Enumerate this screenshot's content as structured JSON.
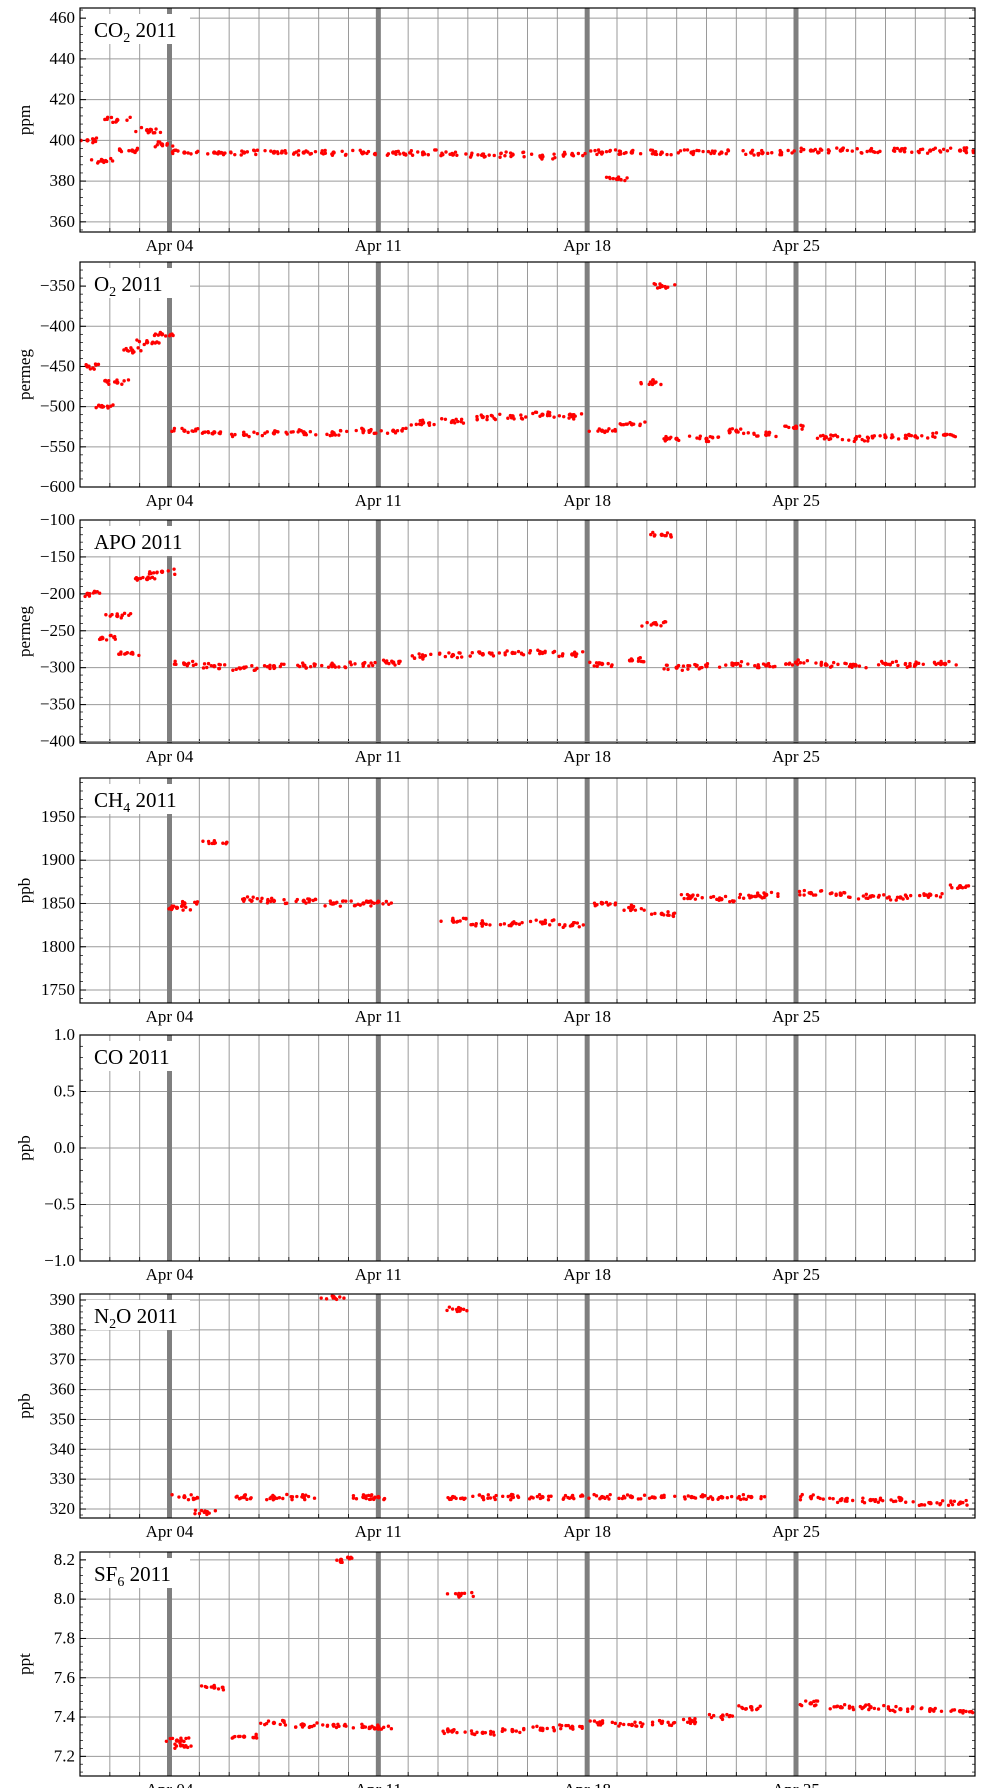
{
  "accent_colors": {
    "data_points": "#ff0000",
    "grid": "#9a9a9a",
    "week_lines": "#7f7f7f"
  },
  "x_axis": {
    "ticks": [
      {
        "date": "2011-04-04",
        "label": "Apr 04"
      },
      {
        "date": "2011-04-11",
        "label": "Apr 11"
      },
      {
        "date": "2011-04-18",
        "label": "Apr 18"
      },
      {
        "date": "2011-04-25",
        "label": "Apr 25"
      }
    ],
    "range": [
      "2011-04-01",
      "2011-05-01"
    ]
  },
  "chart_data": [
    {
      "type": "scatter",
      "title": "CO",
      "title_sub": "2",
      "title_year": "2011",
      "ylabel": "ppm",
      "ylim": [
        355,
        465
      ],
      "yticks": [
        360,
        380,
        400,
        420,
        440,
        460
      ],
      "ytick_labels": [
        "360",
        "380",
        "400",
        "420",
        "440",
        "460"
      ],
      "points": [
        {
          "x": "2011-04-01 06:00",
          "y": 400
        },
        {
          "x": "2011-04-01 18:00",
          "y": 390
        },
        {
          "x": "2011-04-02 06:00",
          "y": 410
        },
        {
          "x": "2011-04-02 18:00",
          "y": 395
        },
        {
          "x": "2011-04-03 06:00",
          "y": 405
        },
        {
          "x": "2011-04-03 18:00",
          "y": 398
        },
        {
          "x": "2011-04-04 12:00",
          "y": 394
        },
        {
          "x": "2011-04-05 12:00",
          "y": 394
        },
        {
          "x": "2011-04-06 12:00",
          "y": 394
        },
        {
          "x": "2011-04-07 12:00",
          "y": 394
        },
        {
          "x": "2011-04-08 12:00",
          "y": 394
        },
        {
          "x": "2011-04-09 12:00",
          "y": 394
        },
        {
          "x": "2011-04-10 12:00",
          "y": 394
        },
        {
          "x": "2011-04-11 12:00",
          "y": 394
        },
        {
          "x": "2011-04-12 12:00",
          "y": 394
        },
        {
          "x": "2011-04-13 12:00",
          "y": 393
        },
        {
          "x": "2011-04-14 12:00",
          "y": 393
        },
        {
          "x": "2011-04-15 12:00",
          "y": 393
        },
        {
          "x": "2011-04-16 12:00",
          "y": 392
        },
        {
          "x": "2011-04-17 12:00",
          "y": 393
        },
        {
          "x": "2011-04-18 12:00",
          "y": 394
        },
        {
          "x": "2011-04-19 00:00",
          "y": 381
        },
        {
          "x": "2011-04-19 12:00",
          "y": 394
        },
        {
          "x": "2011-04-20 12:00",
          "y": 394
        },
        {
          "x": "2011-04-21 12:00",
          "y": 394
        },
        {
          "x": "2011-04-22 12:00",
          "y": 394
        },
        {
          "x": "2011-04-23 12:00",
          "y": 394
        },
        {
          "x": "2011-04-24 12:00",
          "y": 394
        },
        {
          "x": "2011-04-25 12:00",
          "y": 395
        },
        {
          "x": "2011-04-26 12:00",
          "y": 395
        },
        {
          "x": "2011-04-27 12:00",
          "y": 395
        },
        {
          "x": "2011-04-28 12:00",
          "y": 395
        },
        {
          "x": "2011-04-29 12:00",
          "y": 395
        },
        {
          "x": "2011-04-30 12:00",
          "y": 395
        }
      ]
    },
    {
      "type": "scatter",
      "title": "O",
      "title_sub": "2",
      "title_year": "2011",
      "ylabel": "permeg",
      "ylim": [
        -600,
        -320
      ],
      "yticks": [
        -600,
        -550,
        -500,
        -450,
        -400,
        -350
      ],
      "ytick_labels": [
        "−600",
        "−550",
        "−500",
        "−450",
        "−400",
        "−350"
      ],
      "points": [
        {
          "x": "2011-04-01 06:00",
          "y": -450
        },
        {
          "x": "2011-04-01 18:00",
          "y": -500
        },
        {
          "x": "2011-04-02 06:00",
          "y": -470
        },
        {
          "x": "2011-04-02 18:00",
          "y": -430
        },
        {
          "x": "2011-04-03 06:00",
          "y": -420
        },
        {
          "x": "2011-04-03 18:00",
          "y": -410
        },
        {
          "x": "2011-04-04 12:00",
          "y": -530
        },
        {
          "x": "2011-04-05 12:00",
          "y": -532
        },
        {
          "x": "2011-04-06 12:00",
          "y": -535
        },
        {
          "x": "2011-04-07 12:00",
          "y": -533
        },
        {
          "x": "2011-04-08 12:00",
          "y": -532
        },
        {
          "x": "2011-04-09 12:00",
          "y": -533
        },
        {
          "x": "2011-04-10 12:00",
          "y": -530
        },
        {
          "x": "2011-04-11 12:00",
          "y": -530
        },
        {
          "x": "2011-04-12 12:00",
          "y": -520
        },
        {
          "x": "2011-04-13 12:00",
          "y": -518
        },
        {
          "x": "2011-04-14 12:00",
          "y": -513
        },
        {
          "x": "2011-04-15 12:00",
          "y": -512
        },
        {
          "x": "2011-04-16 12:00",
          "y": -510
        },
        {
          "x": "2011-04-17 12:00",
          "y": -512
        },
        {
          "x": "2011-04-18 12:00",
          "y": -530
        },
        {
          "x": "2011-04-19 12:00",
          "y": -522
        },
        {
          "x": "2011-04-20 06:00",
          "y": -470
        },
        {
          "x": "2011-04-20 12:00",
          "y": -350
        },
        {
          "x": "2011-04-21 00:00",
          "y": -540
        },
        {
          "x": "2011-04-22 00:00",
          "y": -540
        },
        {
          "x": "2011-04-23 00:00",
          "y": -530
        },
        {
          "x": "2011-04-24 00:00",
          "y": -535
        },
        {
          "x": "2011-04-25 00:00",
          "y": -525
        },
        {
          "x": "2011-04-26 00:00",
          "y": -538
        },
        {
          "x": "2011-04-27 00:00",
          "y": -540
        },
        {
          "x": "2011-04-28 00:00",
          "y": -538
        },
        {
          "x": "2011-04-29 00:00",
          "y": -537
        },
        {
          "x": "2011-04-30 00:00",
          "y": -535
        }
      ]
    },
    {
      "type": "scatter",
      "title": "APO",
      "title_sub": "",
      "title_year": "2011",
      "ylabel": "permeg",
      "ylim": [
        -402,
        -100
      ],
      "yticks": [
        -400,
        -350,
        -300,
        -250,
        -200,
        -150,
        -100
      ],
      "ytick_labels": [
        "−400",
        "−350",
        "−300",
        "−250",
        "−200",
        "−150",
        "−100"
      ],
      "points": [
        {
          "x": "2011-04-01 06:00",
          "y": -200
        },
        {
          "x": "2011-04-01 18:00",
          "y": -260
        },
        {
          "x": "2011-04-02 06:00",
          "y": -230
        },
        {
          "x": "2011-04-02 18:00",
          "y": -280
        },
        {
          "x": "2011-04-03 06:00",
          "y": -180
        },
        {
          "x": "2011-04-03 18:00",
          "y": -170
        },
        {
          "x": "2011-04-04 12:00",
          "y": -295
        },
        {
          "x": "2011-04-05 12:00",
          "y": -298
        },
        {
          "x": "2011-04-06 12:00",
          "y": -300
        },
        {
          "x": "2011-04-07 12:00",
          "y": -298
        },
        {
          "x": "2011-04-08 12:00",
          "y": -297
        },
        {
          "x": "2011-04-09 12:00",
          "y": -297
        },
        {
          "x": "2011-04-10 12:00",
          "y": -295
        },
        {
          "x": "2011-04-11 12:00",
          "y": -293
        },
        {
          "x": "2011-04-12 12:00",
          "y": -285
        },
        {
          "x": "2011-04-13 12:00",
          "y": -283
        },
        {
          "x": "2011-04-14 12:00",
          "y": -282
        },
        {
          "x": "2011-04-15 12:00",
          "y": -280
        },
        {
          "x": "2011-04-16 12:00",
          "y": -280
        },
        {
          "x": "2011-04-17 12:00",
          "y": -282
        },
        {
          "x": "2011-04-18 12:00",
          "y": -295
        },
        {
          "x": "2011-04-19 12:00",
          "y": -290
        },
        {
          "x": "2011-04-20 06:00",
          "y": -240
        },
        {
          "x": "2011-04-20 12:00",
          "y": -120
        },
        {
          "x": "2011-04-21 00:00",
          "y": -300
        },
        {
          "x": "2011-04-22 00:00",
          "y": -298
        },
        {
          "x": "2011-04-23 00:00",
          "y": -295
        },
        {
          "x": "2011-04-24 00:00",
          "y": -297
        },
        {
          "x": "2011-04-25 00:00",
          "y": -293
        },
        {
          "x": "2011-04-26 00:00",
          "y": -296
        },
        {
          "x": "2011-04-27 00:00",
          "y": -297
        },
        {
          "x": "2011-04-28 00:00",
          "y": -295
        },
        {
          "x": "2011-04-29 00:00",
          "y": -296
        },
        {
          "x": "2011-04-30 00:00",
          "y": -295
        }
      ]
    },
    {
      "type": "scatter",
      "title": "CH",
      "title_sub": "4",
      "title_year": "2011",
      "ylabel": "ppb",
      "ylim": [
        1735,
        1995
      ],
      "yticks": [
        1750,
        1800,
        1850,
        1900,
        1950
      ],
      "ytick_labels": [
        "1750",
        "1800",
        "1850",
        "1900",
        "1950"
      ],
      "points": [
        {
          "x": "2011-04-04 06:00",
          "y": 1845
        },
        {
          "x": "2011-04-04 12:00",
          "y": 1850
        },
        {
          "x": "2011-04-05 12:00",
          "y": 1920
        },
        {
          "x": "2011-04-06 12:00",
          "y": 1855
        },
        {
          "x": "2011-04-07 12:00",
          "y": 1853
        },
        {
          "x": "2011-04-08 12:00",
          "y": 1853
        },
        {
          "x": "2011-04-09 12:00",
          "y": 1850
        },
        {
          "x": "2011-04-10 12:00",
          "y": 1850
        },
        {
          "x": "2011-04-11 00:00",
          "y": 1852
        },
        {
          "x": "2011-04-13 12:00",
          "y": 1830
        },
        {
          "x": "2011-04-14 12:00",
          "y": 1827
        },
        {
          "x": "2011-04-15 12:00",
          "y": 1827
        },
        {
          "x": "2011-04-16 12:00",
          "y": 1828
        },
        {
          "x": "2011-04-17 12:00",
          "y": 1825
        },
        {
          "x": "2011-04-18 12:00",
          "y": 1850
        },
        {
          "x": "2011-04-19 12:00",
          "y": 1845
        },
        {
          "x": "2011-04-20 12:00",
          "y": 1838
        },
        {
          "x": "2011-04-21 12:00",
          "y": 1858
        },
        {
          "x": "2011-04-22 12:00",
          "y": 1855
        },
        {
          "x": "2011-04-23 12:00",
          "y": 1858
        },
        {
          "x": "2011-04-24 00:00",
          "y": 1860
        },
        {
          "x": "2011-04-25 12:00",
          "y": 1862
        },
        {
          "x": "2011-04-26 12:00",
          "y": 1860
        },
        {
          "x": "2011-04-27 12:00",
          "y": 1858
        },
        {
          "x": "2011-04-28 12:00",
          "y": 1857
        },
        {
          "x": "2011-04-29 12:00",
          "y": 1860
        },
        {
          "x": "2011-04-30 12:00",
          "y": 1870
        }
      ]
    },
    {
      "type": "scatter",
      "title": "CO",
      "title_sub": "",
      "title_year": "2011",
      "ylabel": "ppb",
      "ylim": [
        -1.0,
        1.0
      ],
      "yticks": [
        -1.0,
        -0.5,
        0.0,
        0.5,
        1.0
      ],
      "ytick_labels": [
        "−1.0",
        "−0.5",
        "0.0",
        "0.5",
        "1.0"
      ],
      "points": []
    },
    {
      "type": "scatter",
      "title": "N",
      "title_sub": "2",
      "title_suffix": "O",
      "title_year": "2011",
      "ylabel": "ppb",
      "ylim": [
        317,
        392
      ],
      "yticks": [
        320,
        330,
        340,
        350,
        360,
        370,
        380,
        390
      ],
      "ytick_labels": [
        "320",
        "330",
        "340",
        "350",
        "360",
        "370",
        "380",
        "390"
      ],
      "points": [
        {
          "x": "2011-04-04 12:00",
          "y": 324
        },
        {
          "x": "2011-04-05 06:00",
          "y": 319
        },
        {
          "x": "2011-04-06 12:00",
          "y": 324
        },
        {
          "x": "2011-04-07 12:00",
          "y": 324
        },
        {
          "x": "2011-04-08 12:00",
          "y": 324
        },
        {
          "x": "2011-04-09 12:00",
          "y": 391
        },
        {
          "x": "2011-04-10 12:00",
          "y": 324
        },
        {
          "x": "2011-04-11 00:00",
          "y": 324
        },
        {
          "x": "2011-04-13 12:00",
          "y": 324
        },
        {
          "x": "2011-04-13 18:00",
          "y": 387
        },
        {
          "x": "2011-04-14 12:00",
          "y": 324
        },
        {
          "x": "2011-04-15 12:00",
          "y": 324
        },
        {
          "x": "2011-04-16 12:00",
          "y": 324
        },
        {
          "x": "2011-04-17 12:00",
          "y": 324
        },
        {
          "x": "2011-04-18 12:00",
          "y": 324
        },
        {
          "x": "2011-04-19 12:00",
          "y": 324
        },
        {
          "x": "2011-04-20 12:00",
          "y": 324
        },
        {
          "x": "2011-04-21 12:00",
          "y": 324
        },
        {
          "x": "2011-04-22 12:00",
          "y": 324
        },
        {
          "x": "2011-04-23 12:00",
          "y": 324
        },
        {
          "x": "2011-04-25 12:00",
          "y": 324
        },
        {
          "x": "2011-04-26 12:00",
          "y": 323
        },
        {
          "x": "2011-04-27 12:00",
          "y": 323
        },
        {
          "x": "2011-04-28 12:00",
          "y": 323
        },
        {
          "x": "2011-04-29 12:00",
          "y": 322
        },
        {
          "x": "2011-04-30 12:00",
          "y": 322
        }
      ]
    },
    {
      "type": "scatter",
      "title": "SF",
      "title_sub": "6",
      "title_year": "2011",
      "ylabel": "ppt",
      "ylim": [
        7.1,
        8.24
      ],
      "yticks": [
        7.2,
        7.4,
        7.6,
        7.8,
        8.0,
        8.2
      ],
      "ytick_labels": [
        "7.2",
        "7.4",
        "7.6",
        "7.8",
        "8.0",
        "8.2"
      ],
      "points": [
        {
          "x": "2011-04-04 06:00",
          "y": 7.28
        },
        {
          "x": "2011-04-04 12:00",
          "y": 7.25
        },
        {
          "x": "2011-04-05 12:00",
          "y": 7.55
        },
        {
          "x": "2011-04-06 12:00",
          "y": 7.3
        },
        {
          "x": "2011-04-07 12:00",
          "y": 7.37
        },
        {
          "x": "2011-04-08 12:00",
          "y": 7.36
        },
        {
          "x": "2011-04-09 12:00",
          "y": 7.36
        },
        {
          "x": "2011-04-09 18:00",
          "y": 8.2
        },
        {
          "x": "2011-04-10 12:00",
          "y": 7.35
        },
        {
          "x": "2011-04-11 00:00",
          "y": 7.35
        },
        {
          "x": "2011-04-13 12:00",
          "y": 7.33
        },
        {
          "x": "2011-04-13 18:00",
          "y": 8.02
        },
        {
          "x": "2011-04-14 12:00",
          "y": 7.32
        },
        {
          "x": "2011-04-15 12:00",
          "y": 7.33
        },
        {
          "x": "2011-04-16 12:00",
          "y": 7.34
        },
        {
          "x": "2011-04-17 12:00",
          "y": 7.35
        },
        {
          "x": "2011-04-18 12:00",
          "y": 7.37
        },
        {
          "x": "2011-04-19 12:00",
          "y": 7.36
        },
        {
          "x": "2011-04-20 12:00",
          "y": 7.37
        },
        {
          "x": "2011-04-21 12:00",
          "y": 7.38
        },
        {
          "x": "2011-04-22 12:00",
          "y": 7.4
        },
        {
          "x": "2011-04-23 12:00",
          "y": 7.45
        },
        {
          "x": "2011-04-25 12:00",
          "y": 7.47
        },
        {
          "x": "2011-04-26 12:00",
          "y": 7.45
        },
        {
          "x": "2011-04-27 12:00",
          "y": 7.45
        },
        {
          "x": "2011-04-28 12:00",
          "y": 7.44
        },
        {
          "x": "2011-04-29 12:00",
          "y": 7.44
        },
        {
          "x": "2011-04-30 12:00",
          "y": 7.43
        }
      ]
    }
  ]
}
